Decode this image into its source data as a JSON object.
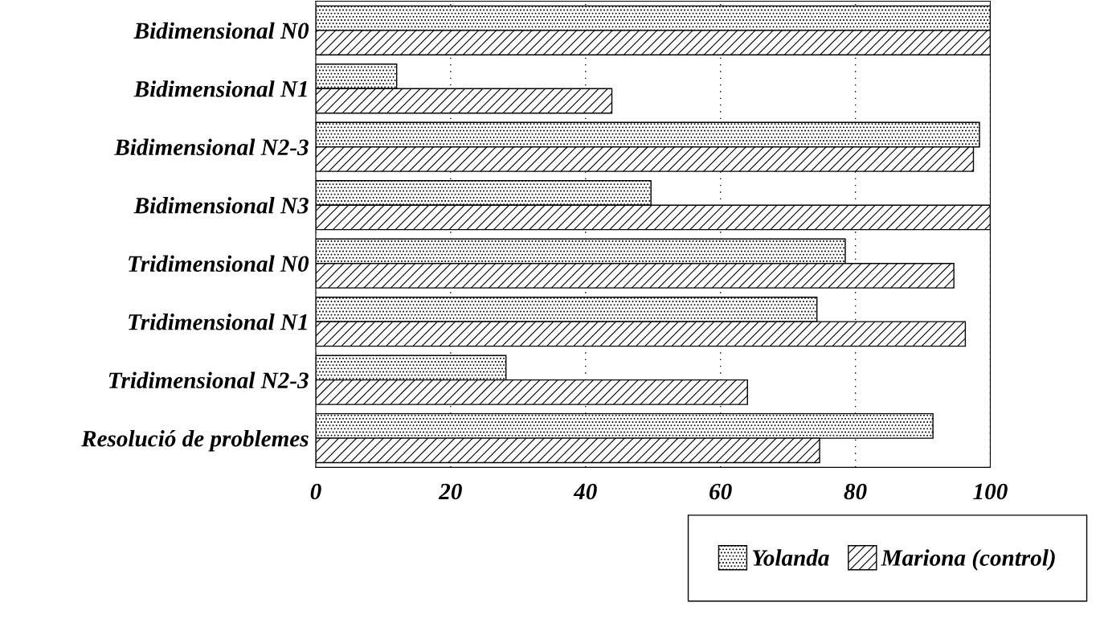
{
  "chart_data": {
    "type": "bar",
    "orientation": "horizontal",
    "categories": [
      "Bidimensional N0",
      "Bidimensional N1",
      "Bidimensional N2-3",
      "Bidimensional N3",
      "Tridimensional N0",
      "Tridimensional N1",
      "Tridimensional N2-3",
      "Resolució de problemes"
    ],
    "series": [
      {
        "name": "Yolanda",
        "color": "#000000",
        "values": [
          100,
          12,
          98.4,
          49.7,
          78.5,
          74.3,
          28.2,
          91.5
        ]
      },
      {
        "name": "Mariona (control)",
        "color": "#000000",
        "values": [
          100,
          43.9,
          97.5,
          100,
          94.6,
          96.3,
          64,
          74.7
        ]
      }
    ],
    "xlim": [
      0,
      100
    ],
    "xticks": [
      0,
      20,
      40,
      60,
      80,
      100
    ],
    "grid": "x",
    "legend": "bottom right"
  }
}
